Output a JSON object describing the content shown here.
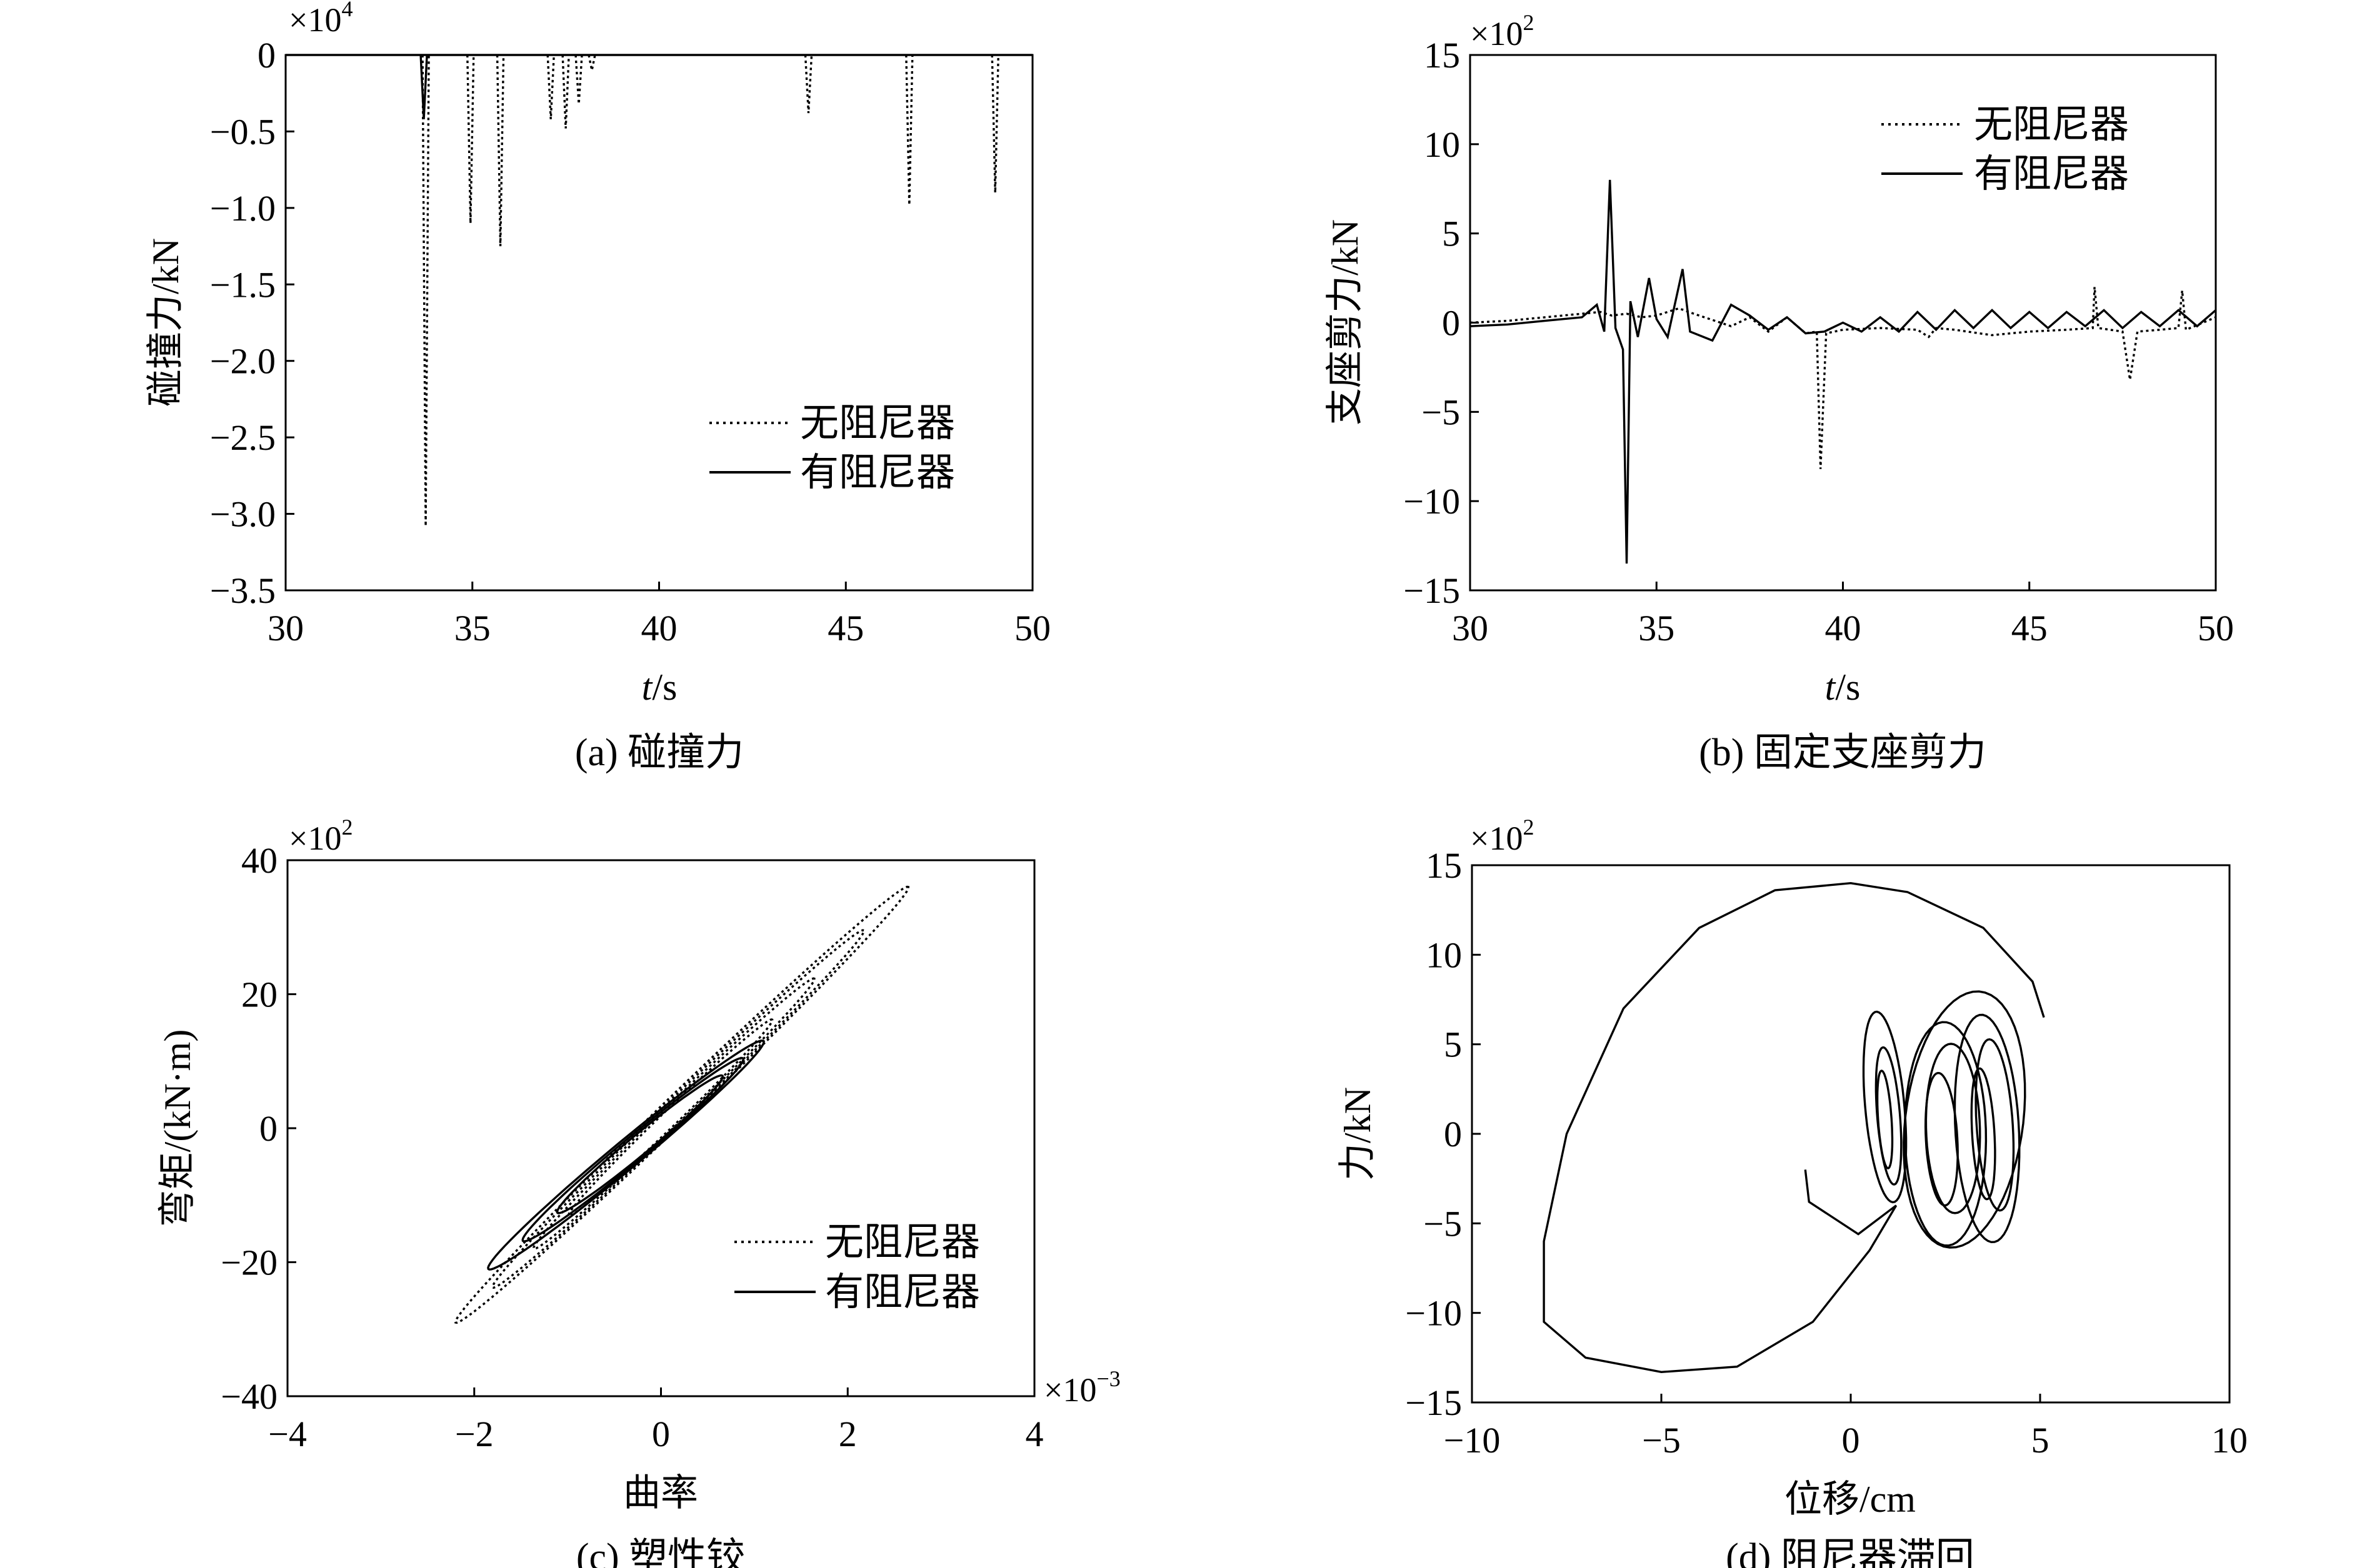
{
  "panels": {
    "a": {
      "caption": "(a) 碰撞力",
      "xlabel_var": "t",
      "xlabel_unit": "/s",
      "ylabel": "碰撞力/kN",
      "multiplier_base": "×10",
      "multiplier_exp": "4",
      "xticks": [
        "30",
        "35",
        "40",
        "45",
        "50"
      ],
      "yticks": [
        "0",
        "−0.5",
        "−1.0",
        "−1.5",
        "−2.0",
        "−2.5",
        "−3.0",
        "−3.5"
      ],
      "legend": [
        "无阻尼器",
        "有阻尼器"
      ]
    },
    "b": {
      "caption": "(b) 固定支座剪力",
      "xlabel_var": "t",
      "xlabel_unit": "/s",
      "ylabel": "支座剪力/kN",
      "multiplier_base": "×10",
      "multiplier_exp": "2",
      "xticks": [
        "30",
        "35",
        "40",
        "45",
        "50"
      ],
      "yticks": [
        "15",
        "10",
        "5",
        "0",
        "−5",
        "−10",
        "−15"
      ],
      "legend": [
        "无阻尼器",
        "有阻尼器"
      ]
    },
    "c": {
      "caption": "(c) 塑性铰",
      "xlabel": "曲率",
      "ylabel": "弯矩/(kN·m)",
      "multiplier_base": "×10",
      "multiplier_exp": "2",
      "x_multiplier_base": "×10",
      "x_multiplier_exp": "−3",
      "xticks": [
        "−4",
        "−2",
        "0",
        "2",
        "4"
      ],
      "yticks": [
        "40",
        "20",
        "0",
        "−20",
        "−40"
      ],
      "legend": [
        "无阻尼器",
        "有阻尼器"
      ]
    },
    "d": {
      "caption": "(d) 阻尼器滞回",
      "xlabel": "位移/cm",
      "ylabel": "力/kN",
      "multiplier_base": "×10",
      "multiplier_exp": "2",
      "xticks": [
        "−10",
        "−5",
        "0",
        "5",
        "10"
      ],
      "yticks": [
        "15",
        "10",
        "5",
        "0",
        "−5",
        "−10",
        "−15"
      ]
    }
  },
  "chart_data": [
    {
      "type": "line",
      "ylim": [
        -3.5,
        0
      ],
      "xlim": [
        30,
        50
      ],
      "y_scale": "×10^4",
      "legend_position": "lower-right",
      "series": [
        {
          "name": "无阻尼器",
          "style": "dotted",
          "impacts": [
            [
              33.75,
              -3.08
            ],
            [
              34.95,
              -1.1
            ],
            [
              35.75,
              -1.25
            ],
            [
              37.1,
              -0.42
            ],
            [
              37.5,
              -0.48
            ],
            [
              37.85,
              -0.32
            ],
            [
              38.2,
              -0.1
            ],
            [
              44.0,
              -0.38
            ],
            [
              46.7,
              -0.98
            ],
            [
              49.0,
              -0.9
            ]
          ]
        },
        {
          "name": "有阻尼器",
          "style": "solid",
          "impacts": [
            [
              33.7,
              -0.42
            ]
          ]
        }
      ]
    },
    {
      "type": "line",
      "ylim": [
        -15,
        15
      ],
      "xlim": [
        30,
        50
      ],
      "y_scale": "×10^2",
      "legend_position": "top-right",
      "series": [
        {
          "name": "无阻尼器",
          "style": "dotted",
          "points": [
            [
              30.0,
              0
            ],
            [
              31.0,
              0.1
            ],
            [
              32.0,
              0.3
            ],
            [
              33.0,
              0.5
            ],
            [
              33.5,
              0.6
            ],
            [
              33.8,
              0.4
            ],
            [
              34.2,
              0.5
            ],
            [
              34.6,
              0.3
            ],
            [
              35.0,
              0.4
            ],
            [
              35.6,
              0.8
            ],
            [
              36.0,
              0.5
            ],
            [
              37.0,
              -0.2
            ],
            [
              37.5,
              0.3
            ],
            [
              38.0,
              -0.5
            ],
            [
              38.5,
              0.3
            ],
            [
              39.0,
              -0.6
            ],
            [
              39.3,
              -0.5
            ],
            [
              39.4,
              -8.2
            ],
            [
              39.55,
              -0.6
            ],
            [
              40.0,
              -0.4
            ],
            [
              41.0,
              -0.3
            ],
            [
              42.0,
              -0.4
            ],
            [
              42.3,
              -0.8
            ],
            [
              42.5,
              -0.3
            ],
            [
              43.0,
              -0.4
            ],
            [
              44.0,
              -0.7
            ],
            [
              45.0,
              -0.5
            ],
            [
              46.0,
              -0.4
            ],
            [
              46.7,
              -0.3
            ],
            [
              46.75,
              2.0
            ],
            [
              46.85,
              -0.3
            ],
            [
              47.5,
              -0.5
            ],
            [
              47.7,
              -3.2
            ],
            [
              47.9,
              -0.5
            ],
            [
              48.5,
              -0.4
            ],
            [
              49.0,
              -0.3
            ],
            [
              49.1,
              1.8
            ],
            [
              49.2,
              -0.4
            ],
            [
              50.0,
              0.3
            ]
          ]
        },
        {
          "name": "有阻尼器",
          "style": "solid",
          "points": [
            [
              30.0,
              -0.2
            ],
            [
              31.0,
              -0.1
            ],
            [
              32.0,
              0.1
            ],
            [
              33.0,
              0.3
            ],
            [
              33.4,
              1.0
            ],
            [
              33.6,
              -0.5
            ],
            [
              33.75,
              8.0
            ],
            [
              33.9,
              -0.3
            ],
            [
              34.1,
              -1.5
            ],
            [
              34.2,
              -13.5
            ],
            [
              34.3,
              1.2
            ],
            [
              34.5,
              -0.8
            ],
            [
              34.8,
              2.5
            ],
            [
              35.0,
              0.2
            ],
            [
              35.3,
              -0.8
            ],
            [
              35.7,
              3.0
            ],
            [
              35.9,
              -0.5
            ],
            [
              36.5,
              -1.0
            ],
            [
              37.0,
              1.0
            ],
            [
              37.5,
              0.4
            ],
            [
              38.0,
              -0.4
            ],
            [
              38.5,
              0.3
            ],
            [
              39.0,
              -0.6
            ],
            [
              39.5,
              -0.5
            ],
            [
              40.0,
              0.0
            ],
            [
              40.5,
              -0.5
            ],
            [
              41.0,
              0.3
            ],
            [
              41.5,
              -0.5
            ],
            [
              42.0,
              0.6
            ],
            [
              42.5,
              -0.4
            ],
            [
              43.0,
              0.7
            ],
            [
              43.5,
              -0.3
            ],
            [
              44.0,
              0.7
            ],
            [
              44.5,
              -0.3
            ],
            [
              45.0,
              0.6
            ],
            [
              45.5,
              -0.3
            ],
            [
              46.0,
              0.6
            ],
            [
              46.5,
              -0.2
            ],
            [
              47.0,
              0.7
            ],
            [
              47.5,
              -0.3
            ],
            [
              48.0,
              0.6
            ],
            [
              48.5,
              -0.2
            ],
            [
              49.0,
              0.7
            ],
            [
              49.5,
              -0.2
            ],
            [
              50.0,
              0.7
            ]
          ]
        }
      ]
    },
    {
      "type": "line",
      "xlim": [
        -4,
        4
      ],
      "ylim": [
        -40,
        40
      ],
      "x_scale": "×10^-3",
      "y_scale": "×10^2",
      "legend_position": "lower-right",
      "series": [
        {
          "name": "无阻尼器",
          "style": "dotted",
          "max_curvature": 2.65,
          "max_moment": 36,
          "min_curvature": -2.2,
          "min_moment": -29
        },
        {
          "name": "有阻尼器",
          "style": "solid",
          "max_curvature": 1.1,
          "max_moment": 13,
          "min_curvature": -1.85,
          "min_moment": -21
        }
      ]
    },
    {
      "type": "line",
      "xlim": [
        -10,
        10
      ],
      "ylim": [
        -15,
        15
      ],
      "y_scale": "×10^2",
      "series": [
        {
          "name": "",
          "style": "solid",
          "max_displacement": 5.1,
          "min_displacement": -8.1,
          "max_force": 14.0,
          "min_force": -13.3
        }
      ]
    }
  ]
}
